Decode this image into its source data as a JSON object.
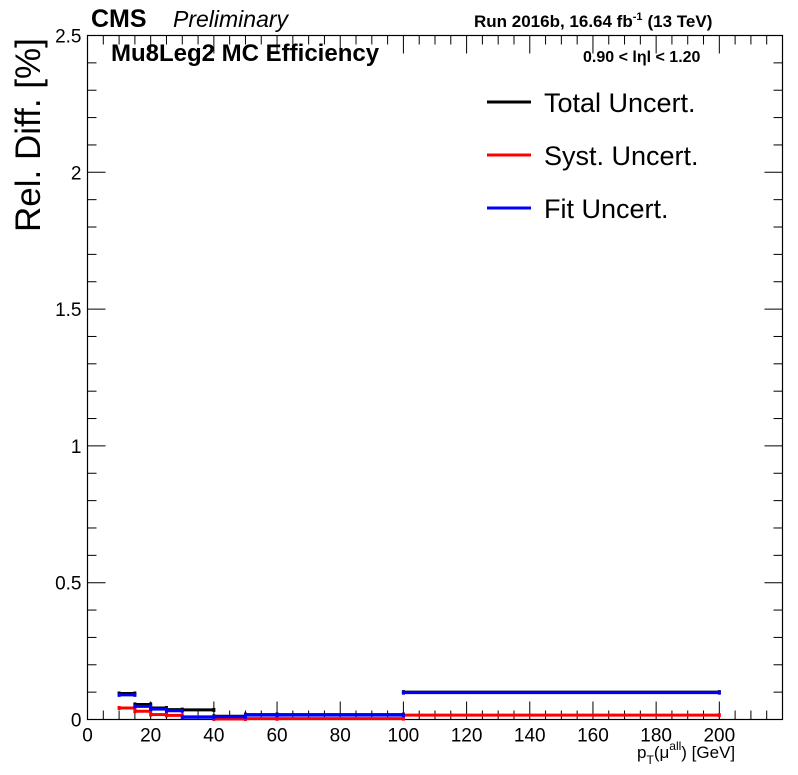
{
  "chart_data": {
    "type": "line",
    "header": {
      "experiment": "CMS",
      "status": "Preliminary",
      "run": "Run 2016b,  16.64 fb",
      "lumi_exp": "-1",
      "energy": "(13 TeV)"
    },
    "title": "Mu8Leg2 MC Efficiency",
    "eta_range": {
      "lo": "0.90 < l",
      "eta": "η",
      "hi": "l < 1.20"
    },
    "ylabel": "Rel. Diff. [%]",
    "xlabel": {
      "pt": "p",
      "pt_sub": "T",
      "mu_open": "(μ",
      "mu_sup": "all",
      "unit": ") [GeV]"
    },
    "xlim": [
      0,
      220
    ],
    "ylim": [
      0,
      2.5
    ],
    "xticks": [
      0,
      20,
      40,
      60,
      80,
      100,
      120,
      140,
      160,
      180,
      200
    ],
    "yticks": [
      0,
      0.5,
      1,
      1.5,
      2,
      2.5
    ],
    "bins": [
      [
        10,
        15
      ],
      [
        15,
        20
      ],
      [
        20,
        25
      ],
      [
        25,
        30
      ],
      [
        30,
        40
      ],
      [
        40,
        50
      ],
      [
        50,
        60
      ],
      [
        60,
        100
      ],
      [
        100,
        200
      ]
    ],
    "series": [
      {
        "name": "Total Uncert.",
        "color": "#000000",
        "values": [
          0.095,
          0.055,
          0.042,
          0.036,
          0.035,
          0.012,
          0.018,
          0.018,
          0.1
        ]
      },
      {
        "name": "Syst. Uncert.",
        "color": "#ff0000",
        "values": [
          0.042,
          0.03,
          0.018,
          0.015,
          0.01,
          0.002,
          0.003,
          0.003,
          0.016
        ]
      },
      {
        "name": "Fit Uncert.",
        "color": "#0000ff",
        "values": [
          0.09,
          0.048,
          0.038,
          0.032,
          0.008,
          0.01,
          0.016,
          0.016,
          0.098
        ]
      }
    ],
    "legend_position": "top-right"
  }
}
